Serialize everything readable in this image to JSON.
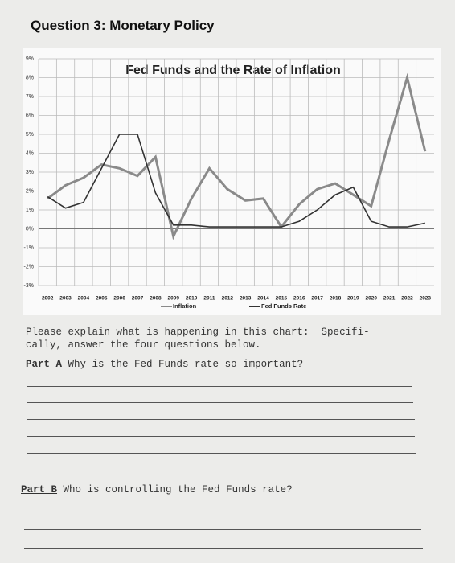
{
  "header": {
    "title": "Question 3: Monetary Policy"
  },
  "chart_data": {
    "type": "line",
    "title": "Fed Funds and the Rate of Inflation",
    "categories": [
      "2002",
      "2003",
      "2004",
      "2005",
      "2006",
      "2007",
      "2008",
      "2009",
      "2010",
      "2011",
      "2012",
      "2013",
      "2014",
      "2015",
      "2016",
      "2017",
      "2018",
      "2019",
      "2020",
      "2021",
      "2022",
      "2023"
    ],
    "series": [
      {
        "name": "Inflation",
        "color": "#8a8a8a",
        "values": [
          1.6,
          2.3,
          2.7,
          3.4,
          3.2,
          2.8,
          3.8,
          -0.4,
          1.6,
          3.2,
          2.1,
          1.5,
          1.6,
          0.1,
          1.3,
          2.1,
          2.4,
          1.8,
          1.2,
          4.7,
          8.0,
          4.1
        ]
      },
      {
        "name": "Fed Funds Rate",
        "color": "#333333",
        "values": [
          1.7,
          1.1,
          1.4,
          3.2,
          5.0,
          5.0,
          1.9,
          0.2,
          0.2,
          0.1,
          0.1,
          0.1,
          0.1,
          0.1,
          0.4,
          1.0,
          1.8,
          2.2,
          0.4,
          0.1,
          0.1,
          0.3
        ]
      }
    ],
    "ylim": [
      -3,
      9
    ],
    "yticks": [
      {
        "value": -3,
        "label": "-3%"
      },
      {
        "value": -2,
        "label": "-2%"
      },
      {
        "value": -1,
        "label": "-1%"
      },
      {
        "value": 0,
        "label": "0%"
      },
      {
        "value": 1,
        "label": "1%"
      },
      {
        "value": 2,
        "label": "2%"
      },
      {
        "value": 3,
        "label": "3%"
      },
      {
        "value": 4,
        "label": "4%"
      },
      {
        "value": 5,
        "label": "5%"
      },
      {
        "value": 6,
        "label": "6%"
      },
      {
        "value": 7,
        "label": "7%"
      },
      {
        "value": 8,
        "label": "8%"
      },
      {
        "value": 9,
        "label": "9%"
      }
    ],
    "grid": true,
    "legend": "bottom"
  },
  "body": {
    "intro": [
      "Please explain what is happening in this chart:  Specifi-",
      "cally, answer the four questions below."
    ],
    "part_a": {
      "label": "Part A",
      "question": "Why is the Fed Funds rate so important?"
    },
    "part_b": {
      "label": "Part B",
      "question": "Who is controlling the Fed Funds rate?"
    }
  }
}
